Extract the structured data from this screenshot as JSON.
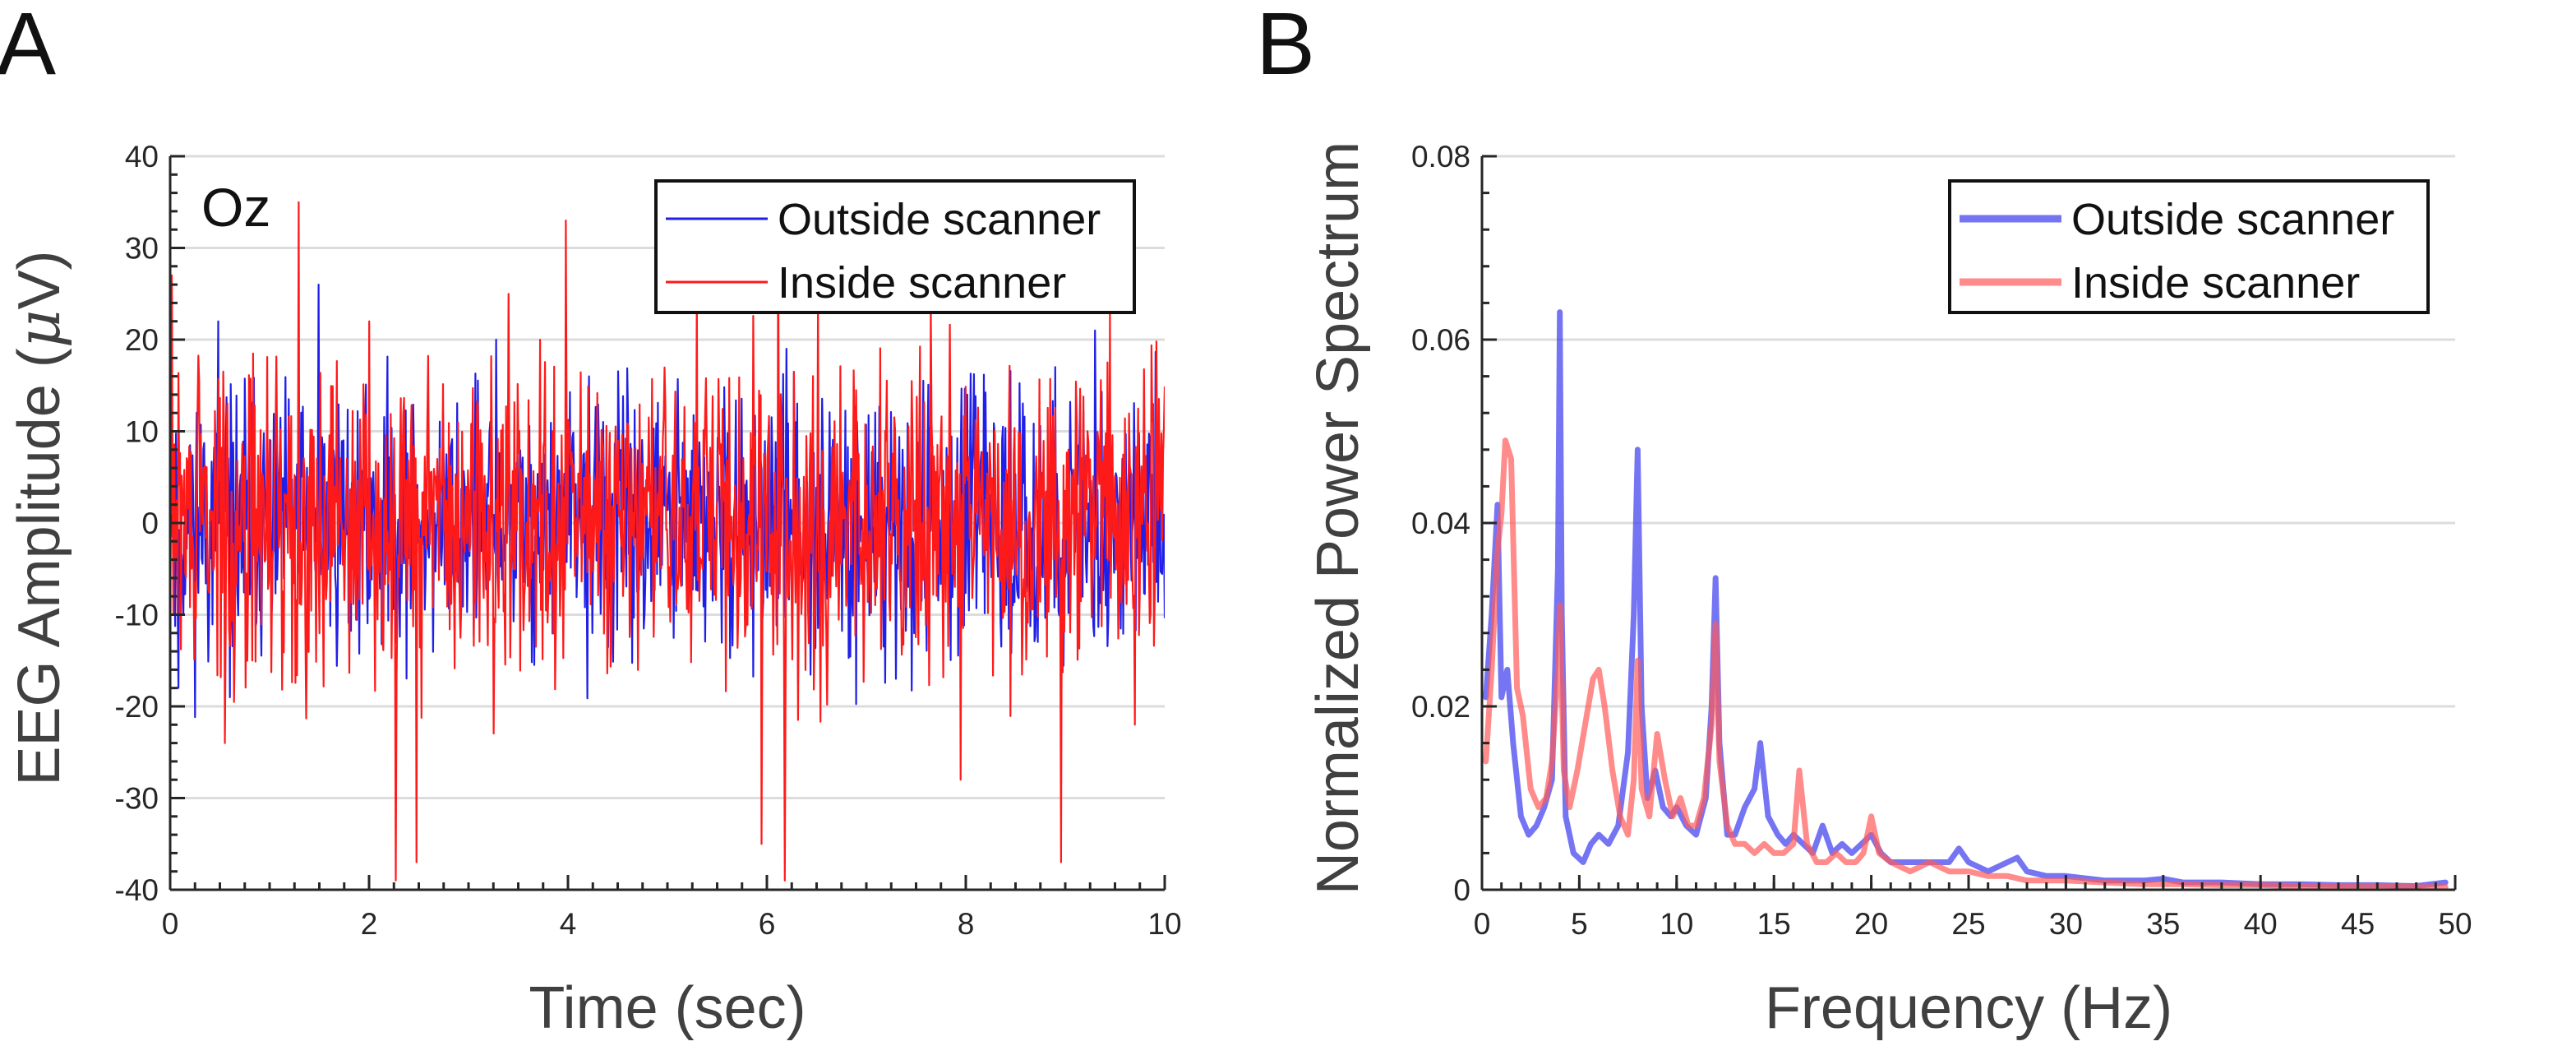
{
  "panel_labels": {
    "a": "A",
    "b": "B"
  },
  "chart_data": [
    {
      "type": "line",
      "panel": "A",
      "title": "",
      "annotation": "Oz",
      "xlabel": "Time (sec)",
      "ylabel_main": "EEG Amplitude (",
      "ylabel_mu": "μ",
      "ylabel_unit": "V)",
      "xlim": [
        0,
        10
      ],
      "ylim": [
        -40,
        40
      ],
      "xticks": [
        0,
        2,
        4,
        6,
        8,
        10
      ],
      "yticks": [
        -40,
        -30,
        -20,
        -10,
        0,
        10,
        20,
        30,
        40
      ],
      "x_minor_step": 0.25,
      "y_minor_step": 2,
      "grid": "horizontal",
      "legend": "top-right",
      "series": [
        {
          "name": "Outside scanner",
          "color": "#1f1fe8",
          "samples": 1200,
          "amplitude_scale": 7.0,
          "seed": 11,
          "spikes": [
            [
              0.02,
              26
            ],
            [
              0.48,
              22
            ],
            [
              1.49,
              26
            ],
            [
              0.08,
              -18
            ],
            [
              3.28,
              20
            ],
            [
              4.21,
              16
            ],
            [
              6.2,
              19
            ],
            [
              8.9,
              17
            ],
            [
              9.3,
              21
            ],
            [
              0.6,
              -19
            ],
            [
              7.3,
              -17
            ]
          ]
        },
        {
          "name": "Inside scanner",
          "color": "#ff1a1a",
          "samples": 1200,
          "amplitude_scale": 8.5,
          "seed": 29,
          "spikes": [
            [
              0.02,
              27
            ],
            [
              1.29,
              35
            ],
            [
              2.0,
              22
            ],
            [
              3.98,
              33
            ],
            [
              6.11,
              31
            ],
            [
              2.27,
              -39
            ],
            [
              2.48,
              -37
            ],
            [
              6.18,
              -39
            ],
            [
              5.95,
              -35
            ],
            [
              8.96,
              -37
            ],
            [
              0.55,
              -24
            ],
            [
              7.95,
              -28
            ],
            [
              9.7,
              -22
            ],
            [
              7.65,
              24
            ],
            [
              9.45,
              23
            ],
            [
              5.3,
              26
            ],
            [
              3.4,
              25
            ]
          ]
        }
      ]
    },
    {
      "type": "line",
      "panel": "B",
      "title": "",
      "xlabel": "Frequency (Hz)",
      "ylabel": "Normalized Power Spectrum",
      "xlim": [
        0,
        50
      ],
      "ylim": [
        0,
        0.08
      ],
      "xticks": [
        0,
        5,
        10,
        15,
        20,
        25,
        30,
        35,
        40,
        45,
        50
      ],
      "yticks": [
        0,
        0.02,
        0.04,
        0.06,
        0.08
      ],
      "ytick_labels": [
        "0",
        "0.02",
        "0.04",
        "0.06",
        "0.08"
      ],
      "x_minor_step": 1,
      "y_minor_step": 0.004,
      "grid": "horizontal",
      "legend": "top-right",
      "series": [
        {
          "name": "Outside scanner",
          "color": "#3b3bf0",
          "x": [
            0.2,
            0.5,
            0.8,
            1.0,
            1.3,
            1.6,
            2.0,
            2.4,
            2.8,
            3.2,
            3.6,
            3.9,
            4.0,
            4.1,
            4.3,
            4.7,
            5.2,
            5.6,
            6.0,
            6.5,
            7.0,
            7.5,
            7.8,
            8.0,
            8.2,
            8.5,
            8.9,
            9.3,
            9.7,
            10.0,
            10.5,
            11.0,
            11.5,
            11.8,
            12.0,
            12.2,
            12.6,
            13.0,
            13.5,
            14.0,
            14.3,
            14.7,
            15.2,
            15.6,
            16.0,
            16.5,
            17.0,
            17.5,
            18.0,
            18.5,
            19.0,
            19.5,
            20.0,
            20.5,
            21.0,
            22.0,
            23.0,
            24.0,
            24.5,
            25.0,
            26.0,
            27.0,
            27.5,
            28.0,
            29.0,
            30.0,
            32.0,
            34.0,
            35.0,
            36.0,
            38.0,
            40.0,
            42.0,
            44.0,
            46.0,
            48.0,
            49.5
          ],
          "y": [
            0.021,
            0.03,
            0.042,
            0.021,
            0.024,
            0.016,
            0.008,
            0.006,
            0.007,
            0.009,
            0.012,
            0.035,
            0.063,
            0.03,
            0.008,
            0.004,
            0.003,
            0.005,
            0.006,
            0.005,
            0.007,
            0.015,
            0.03,
            0.048,
            0.02,
            0.01,
            0.013,
            0.009,
            0.008,
            0.009,
            0.007,
            0.006,
            0.01,
            0.02,
            0.034,
            0.016,
            0.006,
            0.006,
            0.009,
            0.011,
            0.016,
            0.008,
            0.006,
            0.005,
            0.006,
            0.005,
            0.004,
            0.007,
            0.004,
            0.005,
            0.004,
            0.005,
            0.006,
            0.004,
            0.003,
            0.003,
            0.003,
            0.003,
            0.0045,
            0.003,
            0.002,
            0.003,
            0.0035,
            0.002,
            0.0015,
            0.0015,
            0.001,
            0.001,
            0.0012,
            0.0008,
            0.0008,
            0.0006,
            0.0006,
            0.0005,
            0.0005,
            0.0004,
            0.0008
          ]
        },
        {
          "name": "Inside scanner",
          "color": "#ff5a5a",
          "x": [
            0.2,
            0.5,
            0.8,
            1.0,
            1.2,
            1.5,
            1.8,
            2.1,
            2.5,
            2.9,
            3.3,
            3.6,
            3.9,
            4.0,
            4.2,
            4.5,
            4.9,
            5.3,
            5.7,
            6.0,
            6.3,
            6.7,
            7.1,
            7.5,
            7.8,
            8.0,
            8.2,
            8.6,
            9.0,
            9.4,
            9.8,
            10.2,
            10.6,
            11.0,
            11.4,
            11.8,
            12.0,
            12.2,
            12.6,
            13.0,
            13.5,
            14.0,
            14.5,
            15.0,
            15.5,
            16.0,
            16.3,
            16.7,
            17.2,
            17.7,
            18.2,
            18.7,
            19.2,
            19.6,
            20.0,
            20.4,
            21.0,
            22.0,
            23.0,
            24.0,
            25.0,
            26.0,
            27.0,
            28.0,
            29.0,
            30.0,
            32.0,
            34.0,
            36.0,
            38.0,
            40.0,
            42.0,
            44.0,
            46.0,
            48.0,
            49.5
          ],
          "y": [
            0.014,
            0.024,
            0.037,
            0.041,
            0.049,
            0.047,
            0.022,
            0.019,
            0.011,
            0.009,
            0.01,
            0.014,
            0.024,
            0.031,
            0.013,
            0.009,
            0.013,
            0.018,
            0.023,
            0.024,
            0.02,
            0.013,
            0.008,
            0.006,
            0.012,
            0.025,
            0.011,
            0.008,
            0.017,
            0.012,
            0.008,
            0.01,
            0.007,
            0.007,
            0.01,
            0.018,
            0.029,
            0.014,
            0.007,
            0.005,
            0.005,
            0.004,
            0.005,
            0.004,
            0.004,
            0.005,
            0.013,
            0.005,
            0.003,
            0.003,
            0.004,
            0.003,
            0.003,
            0.004,
            0.008,
            0.004,
            0.003,
            0.002,
            0.003,
            0.002,
            0.002,
            0.0015,
            0.0015,
            0.001,
            0.001,
            0.001,
            0.0008,
            0.0006,
            0.0006,
            0.0005,
            0.0005,
            0.0004,
            0.0004,
            0.0004,
            0.0003,
            0.0003
          ]
        }
      ]
    }
  ]
}
